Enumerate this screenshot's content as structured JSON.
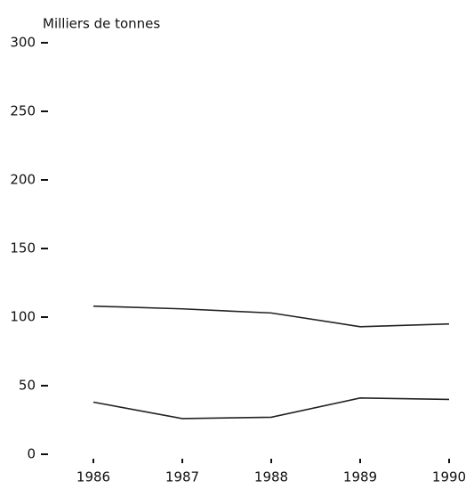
{
  "chart_data": {
    "type": "line",
    "y_label": "Milliers de tonnes",
    "categories": [
      "1986",
      "1987",
      "1988",
      "1989",
      "1990"
    ],
    "series": [
      {
        "color": "#222222",
        "values": [
          108,
          106,
          103,
          93,
          95
        ]
      },
      {
        "color": "#222222",
        "values": [
          38,
          26,
          27,
          41,
          40
        ]
      }
    ],
    "ylim": [
      0,
      300
    ],
    "yticks": [
      0,
      50,
      100,
      150,
      200,
      250,
      300
    ],
    "grid": false
  }
}
